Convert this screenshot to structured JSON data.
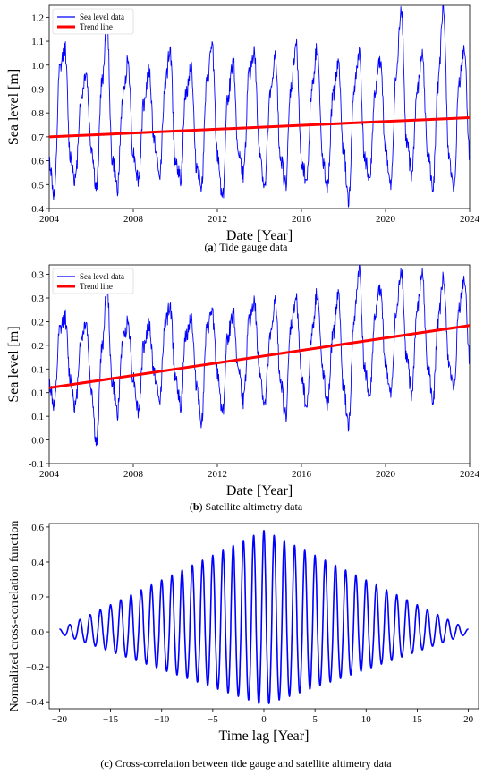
{
  "chart_data": [
    {
      "type": "line",
      "caption_tag": "a",
      "caption_text": " Tide gauge data",
      "xlabel": "Date [Year]",
      "ylabel": "Sea level [m]",
      "xlim": [
        2004,
        2024
      ],
      "ylim": [
        0.4,
        1.25
      ],
      "x_ticks": [
        "2004",
        "2008",
        "2012",
        "2016",
        "2020",
        "2024"
      ],
      "x_tick_values": [
        2004,
        2008,
        2012,
        2016,
        2020,
        2024
      ],
      "y_ticks": [
        "0.4",
        "0.5",
        "0.6",
        "0.7",
        "0.8",
        "0.9",
        "1.0",
        "1.1",
        "1.2"
      ],
      "y_tick_values": [
        0.4,
        0.5,
        0.6,
        0.7,
        0.8,
        0.9,
        1.0,
        1.1,
        1.2
      ],
      "legend_position": "top-left",
      "series": [
        {
          "name": "Sea level data",
          "color": "#0000ff",
          "x": [
            2004.0,
            2004.25,
            2004.5,
            2004.75,
            2005.0,
            2005.25,
            2005.5,
            2005.75,
            2006.0,
            2006.25,
            2006.5,
            2006.75,
            2007.0,
            2007.25,
            2007.5,
            2007.75,
            2008.0,
            2008.25,
            2008.5,
            2008.75,
            2009.0,
            2009.25,
            2009.5,
            2009.75,
            2010.0,
            2010.25,
            2010.5,
            2010.75,
            2011.0,
            2011.25,
            2011.5,
            2011.75,
            2012.0,
            2012.25,
            2012.5,
            2012.75,
            2013.0,
            2013.25,
            2013.5,
            2013.75,
            2014.0,
            2014.25,
            2014.5,
            2014.75,
            2015.0,
            2015.25,
            2015.5,
            2015.75,
            2016.0,
            2016.25,
            2016.5,
            2016.75,
            2017.0,
            2017.25,
            2017.5,
            2017.75,
            2018.0,
            2018.25,
            2018.5,
            2018.75,
            2019.0,
            2019.25,
            2019.5,
            2019.75,
            2020.0,
            2020.25,
            2020.5,
            2020.75,
            2021.0,
            2021.25,
            2021.5,
            2021.75,
            2022.0,
            2022.25,
            2022.5,
            2022.75,
            2023.0,
            2023.25,
            2023.5,
            2023.75,
            2024.0
          ],
          "y": [
            0.6,
            0.45,
            0.98,
            1.07,
            0.62,
            0.52,
            0.85,
            0.97,
            0.66,
            0.48,
            0.92,
            1.17,
            0.6,
            0.49,
            0.86,
            1.02,
            0.63,
            0.52,
            0.84,
            0.97,
            0.68,
            0.53,
            0.9,
            1.06,
            0.61,
            0.52,
            0.88,
            1.0,
            0.58,
            0.5,
            0.92,
            1.08,
            0.62,
            0.45,
            0.87,
            1.02,
            0.63,
            0.54,
            0.96,
            1.05,
            0.65,
            0.48,
            0.86,
            1.03,
            0.62,
            0.5,
            0.9,
            1.09,
            0.6,
            0.52,
            0.91,
            1.07,
            0.61,
            0.5,
            0.87,
            1.01,
            0.64,
            0.43,
            0.89,
            1.05,
            0.61,
            0.52,
            0.88,
            1.02,
            0.65,
            0.48,
            0.94,
            1.24,
            0.67,
            0.55,
            0.88,
            1.04,
            0.64,
            0.48,
            0.92,
            1.24,
            0.64,
            0.46,
            0.93,
            1.07,
            0.62
          ]
        },
        {
          "name": "Trend line",
          "color": "#ff0000",
          "x": [
            2004,
            2024
          ],
          "y": [
            0.7,
            0.78
          ]
        }
      ]
    },
    {
      "type": "line",
      "caption_tag": "b",
      "caption_text": " Satellite altimetry data",
      "xlabel": "Date [Year]",
      "ylabel": "Sea level [m]",
      "xlim": [
        2004,
        2024
      ],
      "ylim": [
        -0.1,
        0.32
      ],
      "x_ticks": [
        "2004",
        "2008",
        "2012",
        "2016",
        "2020",
        "2024"
      ],
      "x_tick_values": [
        2004,
        2008,
        2012,
        2016,
        2020,
        2024
      ],
      "y_ticks": [
        "-0.1",
        "0.0",
        "0.1",
        "0.1",
        "0.1",
        "0.2",
        "0.2",
        "0.3",
        "0.3"
      ],
      "y_tick_values": [
        -0.1,
        -0.05,
        0.0,
        0.05,
        0.1,
        0.15,
        0.2,
        0.25,
        0.3
      ],
      "legend_position": "top-left",
      "series": [
        {
          "name": "Sea level data",
          "color": "#0000ff",
          "x": [
            2004.0,
            2004.25,
            2004.5,
            2004.75,
            2005.0,
            2005.25,
            2005.5,
            2005.75,
            2006.0,
            2006.25,
            2006.5,
            2006.75,
            2007.0,
            2007.25,
            2007.5,
            2007.75,
            2008.0,
            2008.25,
            2008.5,
            2008.75,
            2009.0,
            2009.25,
            2009.5,
            2009.75,
            2010.0,
            2010.25,
            2010.5,
            2010.75,
            2011.0,
            2011.25,
            2011.5,
            2011.75,
            2012.0,
            2012.25,
            2012.5,
            2012.75,
            2013.0,
            2013.25,
            2013.5,
            2013.75,
            2014.0,
            2014.25,
            2014.5,
            2014.75,
            2015.0,
            2015.25,
            2015.5,
            2015.75,
            2016.0,
            2016.25,
            2016.5,
            2016.75,
            2017.0,
            2017.25,
            2017.5,
            2017.75,
            2018.0,
            2018.25,
            2018.5,
            2018.75,
            2019.0,
            2019.25,
            2019.5,
            2019.75,
            2020.0,
            2020.25,
            2020.5,
            2020.75,
            2021.0,
            2021.25,
            2021.5,
            2021.75,
            2022.0,
            2022.25,
            2022.5,
            2022.75,
            2023.0,
            2023.25,
            2023.5,
            2023.75,
            2024.0
          ],
          "y": [
            0.07,
            0.02,
            0.18,
            0.21,
            0.08,
            0.02,
            0.16,
            0.2,
            0.06,
            -0.06,
            0.14,
            0.27,
            0.07,
            0.01,
            0.16,
            0.2,
            0.08,
            0.01,
            0.15,
            0.19,
            0.09,
            0.03,
            0.19,
            0.23,
            0.09,
            0.02,
            0.17,
            0.21,
            0.07,
            -0.01,
            0.18,
            0.22,
            0.09,
            0.01,
            0.17,
            0.22,
            0.1,
            0.03,
            0.2,
            0.24,
            0.1,
            0.02,
            0.16,
            0.24,
            0.08,
            0.0,
            0.19,
            0.25,
            0.09,
            0.02,
            0.18,
            0.26,
            0.1,
            0.03,
            0.17,
            0.26,
            0.06,
            -0.02,
            0.2,
            0.31,
            0.1,
            0.04,
            0.21,
            0.27,
            0.11,
            0.04,
            0.21,
            0.31,
            0.12,
            0.05,
            0.22,
            0.3,
            0.11,
            0.03,
            0.2,
            0.29,
            0.12,
            0.05,
            0.23,
            0.29,
            0.12
          ]
        },
        {
          "name": "Trend line",
          "color": "#ff0000",
          "x": [
            2004,
            2024
          ],
          "y": [
            0.06,
            0.192
          ]
        }
      ]
    },
    {
      "type": "line",
      "caption_tag": "c",
      "caption_text": " Cross-correlation between tide gauge and satellite altimetry data",
      "xlabel": "Time lag [Year]",
      "ylabel": "Normalized cross-correlation function",
      "xlim": [
        -21,
        21
      ],
      "ylim": [
        -0.44,
        0.62
      ],
      "x_ticks": [
        "−20",
        "−15",
        "−10",
        "−5",
        "0",
        "5",
        "10",
        "15",
        "20"
      ],
      "x_tick_values": [
        -20,
        -15,
        -10,
        -5,
        0,
        5,
        10,
        15,
        20
      ],
      "y_ticks": [
        "−0.4",
        "−0.2",
        "0.0",
        "0.2",
        "0.4",
        "0.6"
      ],
      "y_tick_values": [
        -0.4,
        -0.2,
        0.0,
        0.2,
        0.4,
        0.6
      ],
      "series": [
        {
          "name": "",
          "color": "#0000ff",
          "function": "damped_cosine",
          "x_range": [
            -20,
            20
          ],
          "peak": 0.58,
          "trough": -0.42,
          "period": 1.0
        }
      ]
    }
  ]
}
